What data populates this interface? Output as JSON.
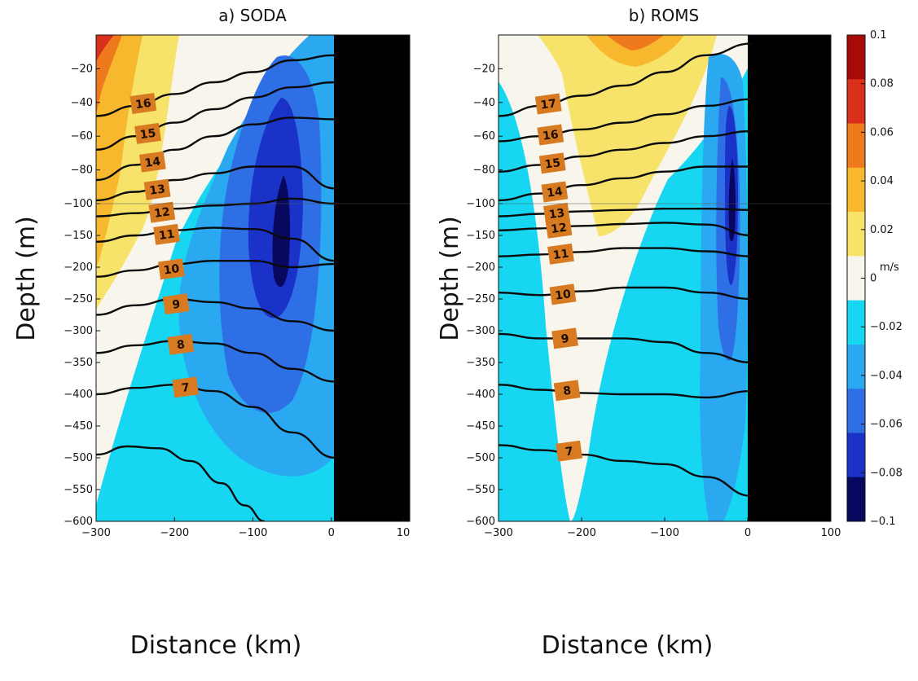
{
  "colors": {
    "scale": [
      "#08085e",
      "#1b32c8",
      "#2f6fe6",
      "#2aa8f0",
      "#17d6f2",
      "#f8f6ec",
      "#f7e26a",
      "#f7b82e",
      "#ef7a1e",
      "#d8301a",
      "#a80a0a"
    ],
    "isotherm": "#0a0a0a",
    "label_box": "#d77a22",
    "land": "#000000"
  },
  "colorbar": {
    "unit": "m/s",
    "ticks": [
      "0.1",
      "0.08",
      "0.06",
      "0.04",
      "0.02",
      "0",
      "−0.02",
      "−0.04",
      "−0.06",
      "−0.08",
      "−0.1"
    ]
  },
  "chart_data": [
    {
      "type": "heatmap",
      "title": "a) SODA",
      "xlabel": "Distance (km)",
      "ylabel": "Depth (m)",
      "xlim": [
        -300,
        100
      ],
      "ylim": [
        -600,
        0
      ],
      "x_ticks": [
        -300,
        -200,
        -100,
        0,
        10
      ],
      "x_tick_labels": [
        "−300",
        "−200",
        "−100",
        "0",
        "10"
      ],
      "y_ticks": [
        -20,
        -40,
        -60,
        -80,
        -100,
        -150,
        -200,
        -250,
        -300,
        -350,
        -400,
        -450,
        -500,
        -550,
        -600
      ],
      "y_tick_labels": [
        "−20",
        "−40",
        "−60",
        "−80",
        "−100",
        "−150",
        "−200",
        "−250",
        "−300",
        "−350",
        "−400",
        "−450",
        "−500",
        "−550",
        "−600"
      ],
      "y_scale": "piecewise: 0..-100 stretched, -100..-600 linear",
      "land_from_x": 5,
      "field_features": [
        {
          "kind": "core",
          "value": -0.1,
          "x": -65,
          "depth": -160
        },
        {
          "kind": "level_region",
          "levels": [
            -0.02,
            -0.04,
            -0.06
          ],
          "description": "poleward undercurrent centered near x=-60 km"
        },
        {
          "kind": "surface_max",
          "value": 0.08,
          "x": -280,
          "depth": -10
        }
      ],
      "isotherms": [
        {
          "label": "16",
          "x": [
            -300,
            -250,
            -200,
            -150,
            -100,
            -50,
            5
          ],
          "depth": [
            -48,
            -42,
            -35,
            -28,
            -22,
            -15,
            -12
          ]
        },
        {
          "label": "15",
          "x": [
            -300,
            -250,
            -200,
            -150,
            -100,
            -50,
            5
          ],
          "depth": [
            -68,
            -60,
            -52,
            -44,
            -37,
            -31,
            -28
          ]
        },
        {
          "label": "14",
          "x": [
            -300,
            -250,
            -200,
            -150,
            -100,
            -50,
            5
          ],
          "depth": [
            -86,
            -77,
            -68,
            -60,
            -53,
            -49,
            -50
          ]
        },
        {
          "label": "13",
          "x": [
            -300,
            -250,
            -200,
            -150,
            -100,
            -50,
            5
          ],
          "depth": [
            -98,
            -93,
            -86,
            -82,
            -78,
            -78,
            -91
          ]
        },
        {
          "label": "12",
          "x": [
            -300,
            -250,
            -200,
            -150,
            -100,
            -50,
            5
          ],
          "depth": [
            -120,
            -115,
            -108,
            -103,
            -100,
            -97,
            -100
          ]
        },
        {
          "label": "11",
          "x": [
            -300,
            -250,
            -200,
            -150,
            -100,
            -50,
            5
          ],
          "depth": [
            -160,
            -150,
            -142,
            -138,
            -140,
            -155,
            -190
          ]
        },
        {
          "label": "10",
          "x": [
            -300,
            -250,
            -200,
            -150,
            -100,
            -50,
            5
          ],
          "depth": [
            -215,
            -205,
            -195,
            -190,
            -190,
            -200,
            -195
          ]
        },
        {
          "label": "9",
          "x": [
            -300,
            -250,
            -200,
            -150,
            -100,
            -50,
            5
          ],
          "depth": [
            -275,
            -260,
            -250,
            -255,
            -265,
            -285,
            -300
          ]
        },
        {
          "label": "8",
          "x": [
            -300,
            -250,
            -200,
            -150,
            -100,
            -50,
            5
          ],
          "depth": [
            -335,
            -323,
            -316,
            -320,
            -335,
            -360,
            -380
          ]
        },
        {
          "label": "7",
          "x": [
            -300,
            -250,
            -200,
            -150,
            -100,
            -50,
            5
          ],
          "depth": [
            -400,
            -390,
            -385,
            -395,
            -420,
            -460,
            -500
          ]
        },
        {
          "label": "",
          "x": [
            -300,
            -260,
            -220,
            -180,
            -140,
            -110,
            -85
          ],
          "depth": [
            -495,
            -482,
            -485,
            -505,
            -540,
            -575,
            -600
          ]
        }
      ]
    },
    {
      "type": "heatmap",
      "title": "b) ROMS",
      "xlabel": "Distance (km)",
      "ylabel": "Depth (m)",
      "xlim": [
        -300,
        100
      ],
      "ylim": [
        -600,
        0
      ],
      "x_ticks": [
        -300,
        -200,
        -100,
        0,
        100
      ],
      "x_tick_labels": [
        "−300",
        "−200",
        "−100",
        "0",
        "100"
      ],
      "y_ticks": [
        -20,
        -40,
        -60,
        -80,
        -100,
        -150,
        -200,
        -250,
        -300,
        -350,
        -400,
        -450,
        -500,
        -550,
        -600
      ],
      "y_tick_labels": [
        "−20",
        "−40",
        "−60",
        "−80",
        "−100",
        "−150",
        "−200",
        "−250",
        "−300",
        "−350",
        "−400",
        "−450",
        "−500",
        "−550",
        "−600"
      ],
      "y_scale": "piecewise: 0..-100 stretched, -100..-600 linear",
      "land_from_x": 5,
      "field_features": [
        {
          "kind": "core",
          "value": -0.1,
          "x": -22,
          "depth": -130
        },
        {
          "kind": "level_region",
          "levels": [
            -0.02,
            -0.04,
            -0.06
          ],
          "description": "narrow poleward undercurrent near x=-20 km"
        },
        {
          "kind": "surface_max",
          "value": 0.06,
          "x": -140,
          "depth": -5
        }
      ],
      "isotherms": [
        {
          "label": "17",
          "x": [
            -300,
            -250,
            -200,
            -150,
            -100,
            -50,
            5
          ],
          "depth": [
            -48,
            -42,
            -36,
            -30,
            -22,
            -12,
            -5
          ]
        },
        {
          "label": "16",
          "x": [
            -300,
            -250,
            -200,
            -150,
            -100,
            -50,
            5
          ],
          "depth": [
            -63,
            -60,
            -56,
            -52,
            -47,
            -42,
            -38
          ]
        },
        {
          "label": "15",
          "x": [
            -300,
            -250,
            -200,
            -150,
            -100,
            -50,
            5
          ],
          "depth": [
            -81,
            -77,
            -72,
            -68,
            -64,
            -60,
            -57
          ]
        },
        {
          "label": "14",
          "x": [
            -300,
            -250,
            -200,
            -150,
            -100,
            -50,
            5
          ],
          "depth": [
            -98,
            -94,
            -89,
            -85,
            -81,
            -78,
            -78
          ]
        },
        {
          "label": "13",
          "x": [
            -300,
            -250,
            -200,
            -150,
            -100,
            -50,
            5
          ],
          "depth": [
            -120,
            -116,
            -112,
            -110,
            -108,
            -108,
            -110
          ]
        },
        {
          "label": "12",
          "x": [
            -300,
            -250,
            -200,
            -150,
            -100,
            -50,
            5
          ],
          "depth": [
            -142,
            -139,
            -135,
            -132,
            -130,
            -133,
            -150
          ]
        },
        {
          "label": "11",
          "x": [
            -300,
            -250,
            -200,
            -150,
            -100,
            -50,
            5
          ],
          "depth": [
            -183,
            -180,
            -176,
            -170,
            -170,
            -175,
            -183
          ]
        },
        {
          "label": "10",
          "x": [
            -300,
            -250,
            -200,
            -150,
            -100,
            -50,
            5
          ],
          "depth": [
            -240,
            -244,
            -238,
            -232,
            -232,
            -240,
            -250
          ]
        },
        {
          "label": "9",
          "x": [
            -300,
            -250,
            -200,
            -150,
            -100,
            -50,
            5
          ],
          "depth": [
            -305,
            -312,
            -312,
            -312,
            -318,
            -335,
            -350
          ]
        },
        {
          "label": "8",
          "x": [
            -300,
            -250,
            -200,
            -150,
            -100,
            -50,
            5
          ],
          "depth": [
            -385,
            -393,
            -398,
            -400,
            -400,
            -405,
            -395
          ]
        },
        {
          "label": "7",
          "x": [
            -300,
            -250,
            -200,
            -150,
            -100,
            -50,
            5
          ],
          "depth": [
            -480,
            -488,
            -495,
            -505,
            -510,
            -530,
            -560
          ]
        }
      ]
    }
  ]
}
